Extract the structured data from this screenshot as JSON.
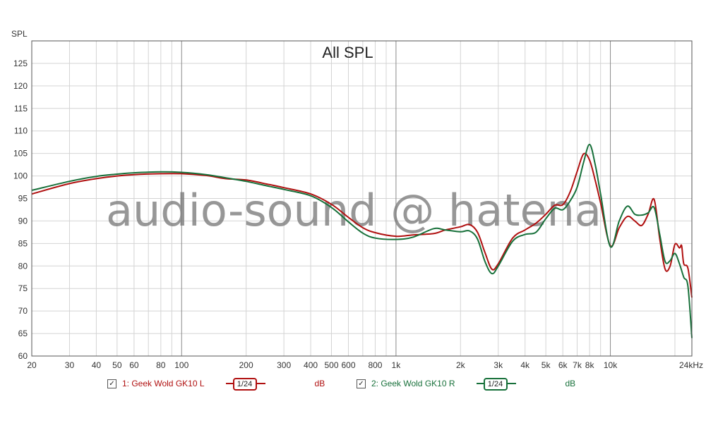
{
  "chart_data": {
    "type": "line",
    "title": "All SPL",
    "ylabel": "SPL",
    "xunit_label": "24kHz",
    "xscale": "log",
    "xlim": [
      20,
      24000
    ],
    "ylim": [
      60,
      130
    ],
    "yticks": [
      60,
      65,
      70,
      75,
      80,
      85,
      90,
      95,
      100,
      105,
      110,
      115,
      120,
      125
    ],
    "xticks": [
      {
        "v": 20,
        "label": "20"
      },
      {
        "v": 30,
        "label": "30"
      },
      {
        "v": 40,
        "label": "40"
      },
      {
        "v": 50,
        "label": "50"
      },
      {
        "v": 60,
        "label": "60"
      },
      {
        "v": 80,
        "label": "80"
      },
      {
        "v": 100,
        "label": "100"
      },
      {
        "v": 200,
        "label": "200"
      },
      {
        "v": 300,
        "label": "300"
      },
      {
        "v": 400,
        "label": "400"
      },
      {
        "v": 500,
        "label": "500"
      },
      {
        "v": 600,
        "label": "600"
      },
      {
        "v": 800,
        "label": "800"
      },
      {
        "v": 1000,
        "label": "1k"
      },
      {
        "v": 2000,
        "label": "2k"
      },
      {
        "v": 3000,
        "label": "3k"
      },
      {
        "v": 4000,
        "label": "4k"
      },
      {
        "v": 5000,
        "label": "5k"
      },
      {
        "v": 6000,
        "label": "6k"
      },
      {
        "v": 7000,
        "label": "7k"
      },
      {
        "v": 8000,
        "label": "8k"
      },
      {
        "v": 10000,
        "label": "10k"
      }
    ],
    "grid": true,
    "watermark": "audio-sound @ hatena",
    "series": [
      {
        "name": "1: Geek Wold GK10 L",
        "color": "#b01010",
        "smoothing": "1/24",
        "unit": "dB",
        "points": [
          [
            20,
            96.0
          ],
          [
            30,
            98.3
          ],
          [
            40,
            99.4
          ],
          [
            50,
            100.0
          ],
          [
            60,
            100.3
          ],
          [
            80,
            100.5
          ],
          [
            100,
            100.5
          ],
          [
            130,
            100.1
          ],
          [
            160,
            99.4
          ],
          [
            200,
            99.1
          ],
          [
            250,
            98.2
          ],
          [
            300,
            97.4
          ],
          [
            400,
            96.0
          ],
          [
            500,
            93.7
          ],
          [
            600,
            90.8
          ],
          [
            700,
            88.5
          ],
          [
            800,
            87.4
          ],
          [
            1000,
            86.6
          ],
          [
            1200,
            86.9
          ],
          [
            1500,
            87.2
          ],
          [
            1700,
            88.0
          ],
          [
            2000,
            88.7
          ],
          [
            2200,
            89.2
          ],
          [
            2400,
            87.5
          ],
          [
            2600,
            83.0
          ],
          [
            2800,
            79.3
          ],
          [
            3000,
            80.5
          ],
          [
            3500,
            86.2
          ],
          [
            4000,
            88.0
          ],
          [
            4500,
            89.5
          ],
          [
            5000,
            91.5
          ],
          [
            5500,
            93.5
          ],
          [
            6000,
            93.6
          ],
          [
            6500,
            96.5
          ],
          [
            7000,
            101.0
          ],
          [
            7500,
            104.9
          ],
          [
            8000,
            103.5
          ],
          [
            8500,
            99.0
          ],
          [
            9000,
            94.0
          ],
          [
            10000,
            84.5
          ],
          [
            11000,
            88.5
          ],
          [
            12000,
            91.0
          ],
          [
            13000,
            90.0
          ],
          [
            14000,
            89.0
          ],
          [
            15000,
            91.5
          ],
          [
            16000,
            94.8
          ],
          [
            17000,
            86.0
          ],
          [
            18000,
            79.3
          ],
          [
            19000,
            80.0
          ],
          [
            20000,
            84.8
          ],
          [
            21000,
            84.0
          ],
          [
            21500,
            84.5
          ],
          [
            22000,
            80.5
          ],
          [
            23000,
            79.5
          ],
          [
            24000,
            73.0
          ]
        ]
      },
      {
        "name": "2: Geek Wold GK10 R",
        "color": "#17703a",
        "smoothing": "1/24",
        "unit": "dB",
        "points": [
          [
            20,
            96.8
          ],
          [
            30,
            98.8
          ],
          [
            40,
            99.9
          ],
          [
            50,
            100.4
          ],
          [
            60,
            100.7
          ],
          [
            80,
            100.9
          ],
          [
            100,
            100.8
          ],
          [
            130,
            100.3
          ],
          [
            160,
            99.6
          ],
          [
            200,
            98.8
          ],
          [
            250,
            97.8
          ],
          [
            300,
            97.0
          ],
          [
            400,
            95.6
          ],
          [
            500,
            93.0
          ],
          [
            600,
            89.8
          ],
          [
            700,
            87.3
          ],
          [
            800,
            86.2
          ],
          [
            1000,
            85.9
          ],
          [
            1200,
            86.4
          ],
          [
            1500,
            88.3
          ],
          [
            1700,
            88.0
          ],
          [
            2000,
            87.6
          ],
          [
            2200,
            87.8
          ],
          [
            2400,
            86.0
          ],
          [
            2600,
            81.0
          ],
          [
            2800,
            78.3
          ],
          [
            3000,
            80.0
          ],
          [
            3500,
            85.5
          ],
          [
            4000,
            87.0
          ],
          [
            4500,
            87.5
          ],
          [
            5000,
            90.5
          ],
          [
            5500,
            92.8
          ],
          [
            6000,
            92.5
          ],
          [
            6500,
            94.5
          ],
          [
            7000,
            97.5
          ],
          [
            7500,
            103.0
          ],
          [
            8000,
            107.0
          ],
          [
            8500,
            102.5
          ],
          [
            9000,
            96.0
          ],
          [
            10000,
            84.3
          ],
          [
            11000,
            90.0
          ],
          [
            12000,
            93.3
          ],
          [
            13000,
            91.5
          ],
          [
            14000,
            91.3
          ],
          [
            15000,
            91.8
          ],
          [
            16000,
            93.0
          ],
          [
            17000,
            87.0
          ],
          [
            18000,
            81.0
          ],
          [
            19000,
            81.2
          ],
          [
            20000,
            82.8
          ],
          [
            21000,
            80.5
          ],
          [
            22000,
            77.5
          ],
          [
            23000,
            75.5
          ],
          [
            24000,
            64.0
          ]
        ]
      }
    ]
  },
  "legend": {
    "items": [
      {
        "label": "1: Geek Wold GK10 L",
        "smoothing": "1/24",
        "unit": "dB",
        "color": "#b01010",
        "checked": "✓"
      },
      {
        "label": "2: Geek Wold GK10 R",
        "smoothing": "1/24",
        "unit": "dB",
        "color": "#17703a",
        "checked": "✓"
      }
    ]
  }
}
